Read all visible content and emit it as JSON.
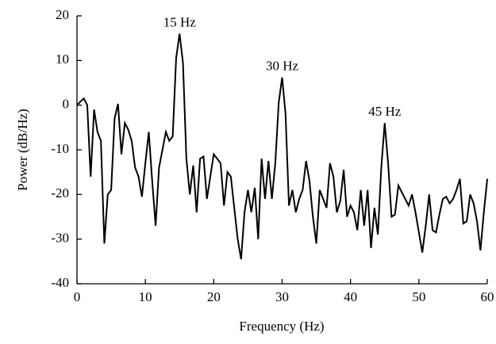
{
  "chart_data": {
    "type": "line",
    "x_label": "Frequency (Hz)",
    "y_label": "Power (dB/Hz)",
    "x": [
      0,
      0.5,
      1,
      1.5,
      2,
      2.5,
      3,
      3.5,
      4,
      4.5,
      5,
      5.5,
      6,
      6.5,
      7,
      7.5,
      8,
      8.5,
      9,
      9.5,
      10,
      10.5,
      11,
      11.5,
      12,
      12.5,
      13,
      13.5,
      14,
      14.5,
      15,
      15.5,
      16,
      16.5,
      17,
      17.5,
      18,
      18.5,
      19,
      19.5,
      20,
      20.5,
      21,
      21.5,
      22,
      22.5,
      23,
      23.5,
      24,
      24.5,
      25,
      25.5,
      26,
      26.5,
      27,
      27.5,
      28,
      28.5,
      29,
      29.5,
      30,
      30.5,
      31,
      31.5,
      32,
      32.5,
      33,
      33.5,
      34,
      34.5,
      35,
      35.5,
      36,
      36.5,
      37,
      37.5,
      38,
      38.5,
      39,
      39.5,
      40,
      40.5,
      41,
      41.5,
      42,
      42.5,
      43,
      43.5,
      44,
      44.5,
      45,
      45.5,
      46,
      46.5,
      47,
      47.5,
      48,
      48.5,
      49,
      49.5,
      50,
      50.5,
      51,
      51.5,
      52,
      52.5,
      53,
      53.5,
      54,
      54.5,
      55,
      55.5,
      56,
      56.5,
      57,
      57.5,
      58,
      58.5,
      59,
      59.5,
      60
    ],
    "series": [
      {
        "color": "#000000",
        "values": [
          0,
          0.8,
          1.5,
          0,
          -16,
          -1,
          -6,
          -8,
          -31,
          -20,
          -19,
          -3,
          0.3,
          -11,
          -4,
          -5.5,
          -8,
          -14,
          -16,
          -20.5,
          -13,
          -6,
          -17,
          -27,
          -14,
          -10,
          -6,
          -8,
          -7,
          10.5,
          16,
          9.5,
          -12,
          -20,
          -13.5,
          -24,
          -12,
          -11.5,
          -21,
          -16,
          -11,
          -12,
          -13,
          -22.5,
          -15,
          -16,
          -23,
          -30,
          -34.5,
          -24,
          -19,
          -24,
          -18.5,
          -30,
          -12,
          -21,
          -12.5,
          -21,
          -13,
          0.5,
          6.2,
          -2,
          -22.5,
          -19,
          -24,
          -21,
          -19,
          -12.5,
          -17,
          -25,
          -31,
          -19,
          -21,
          -23,
          -13,
          -16,
          -24,
          -21.5,
          -14.5,
          -25,
          -22.5,
          -24,
          -28,
          -19,
          -27,
          -19,
          -32,
          -23,
          -29,
          -14,
          -4,
          -13,
          -25,
          -24.5,
          -18,
          -19.5,
          -21,
          -22.5,
          -20,
          -24,
          -28.5,
          -33,
          -27,
          -20,
          -28,
          -28.5,
          -24.5,
          -21,
          -20.5,
          -22,
          -21,
          -19,
          -16.5,
          -26.5,
          -26,
          -20,
          -22,
          -26,
          -32.5,
          -24,
          -16.5
        ]
      }
    ],
    "annotations": [
      {
        "text": "15 Hz",
        "x": 15,
        "y": 16
      },
      {
        "text": "30 Hz",
        "x": 30,
        "y": 6.2
      },
      {
        "text": "45 Hz",
        "x": 45,
        "y": -4
      }
    ],
    "xlim": [
      0,
      60
    ],
    "xticks": [
      0,
      10,
      20,
      30,
      40,
      50,
      60
    ],
    "ylim": [
      -40,
      20
    ],
    "yticks": [
      -40,
      -30,
      -20,
      -10,
      0,
      10,
      20
    ]
  }
}
